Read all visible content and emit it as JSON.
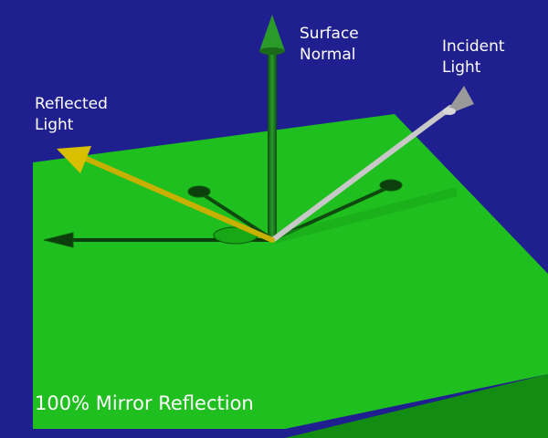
{
  "labels": {
    "surface_normal": "Surface\nNormal",
    "incident_light": "Incident\nLight",
    "reflected_light": "Reflected\nLight"
  },
  "caption": "100% Mirror Reflection",
  "colors": {
    "background": "#1f1f8f",
    "surface": "#1fbf1f",
    "surface_side": "#128c12",
    "normal_arrow": "#1a7a1a",
    "incident_arrow": "#c8c8c8",
    "reflected_arrow": "#c8b000",
    "shadow_arrow": "#0c3f0c"
  }
}
